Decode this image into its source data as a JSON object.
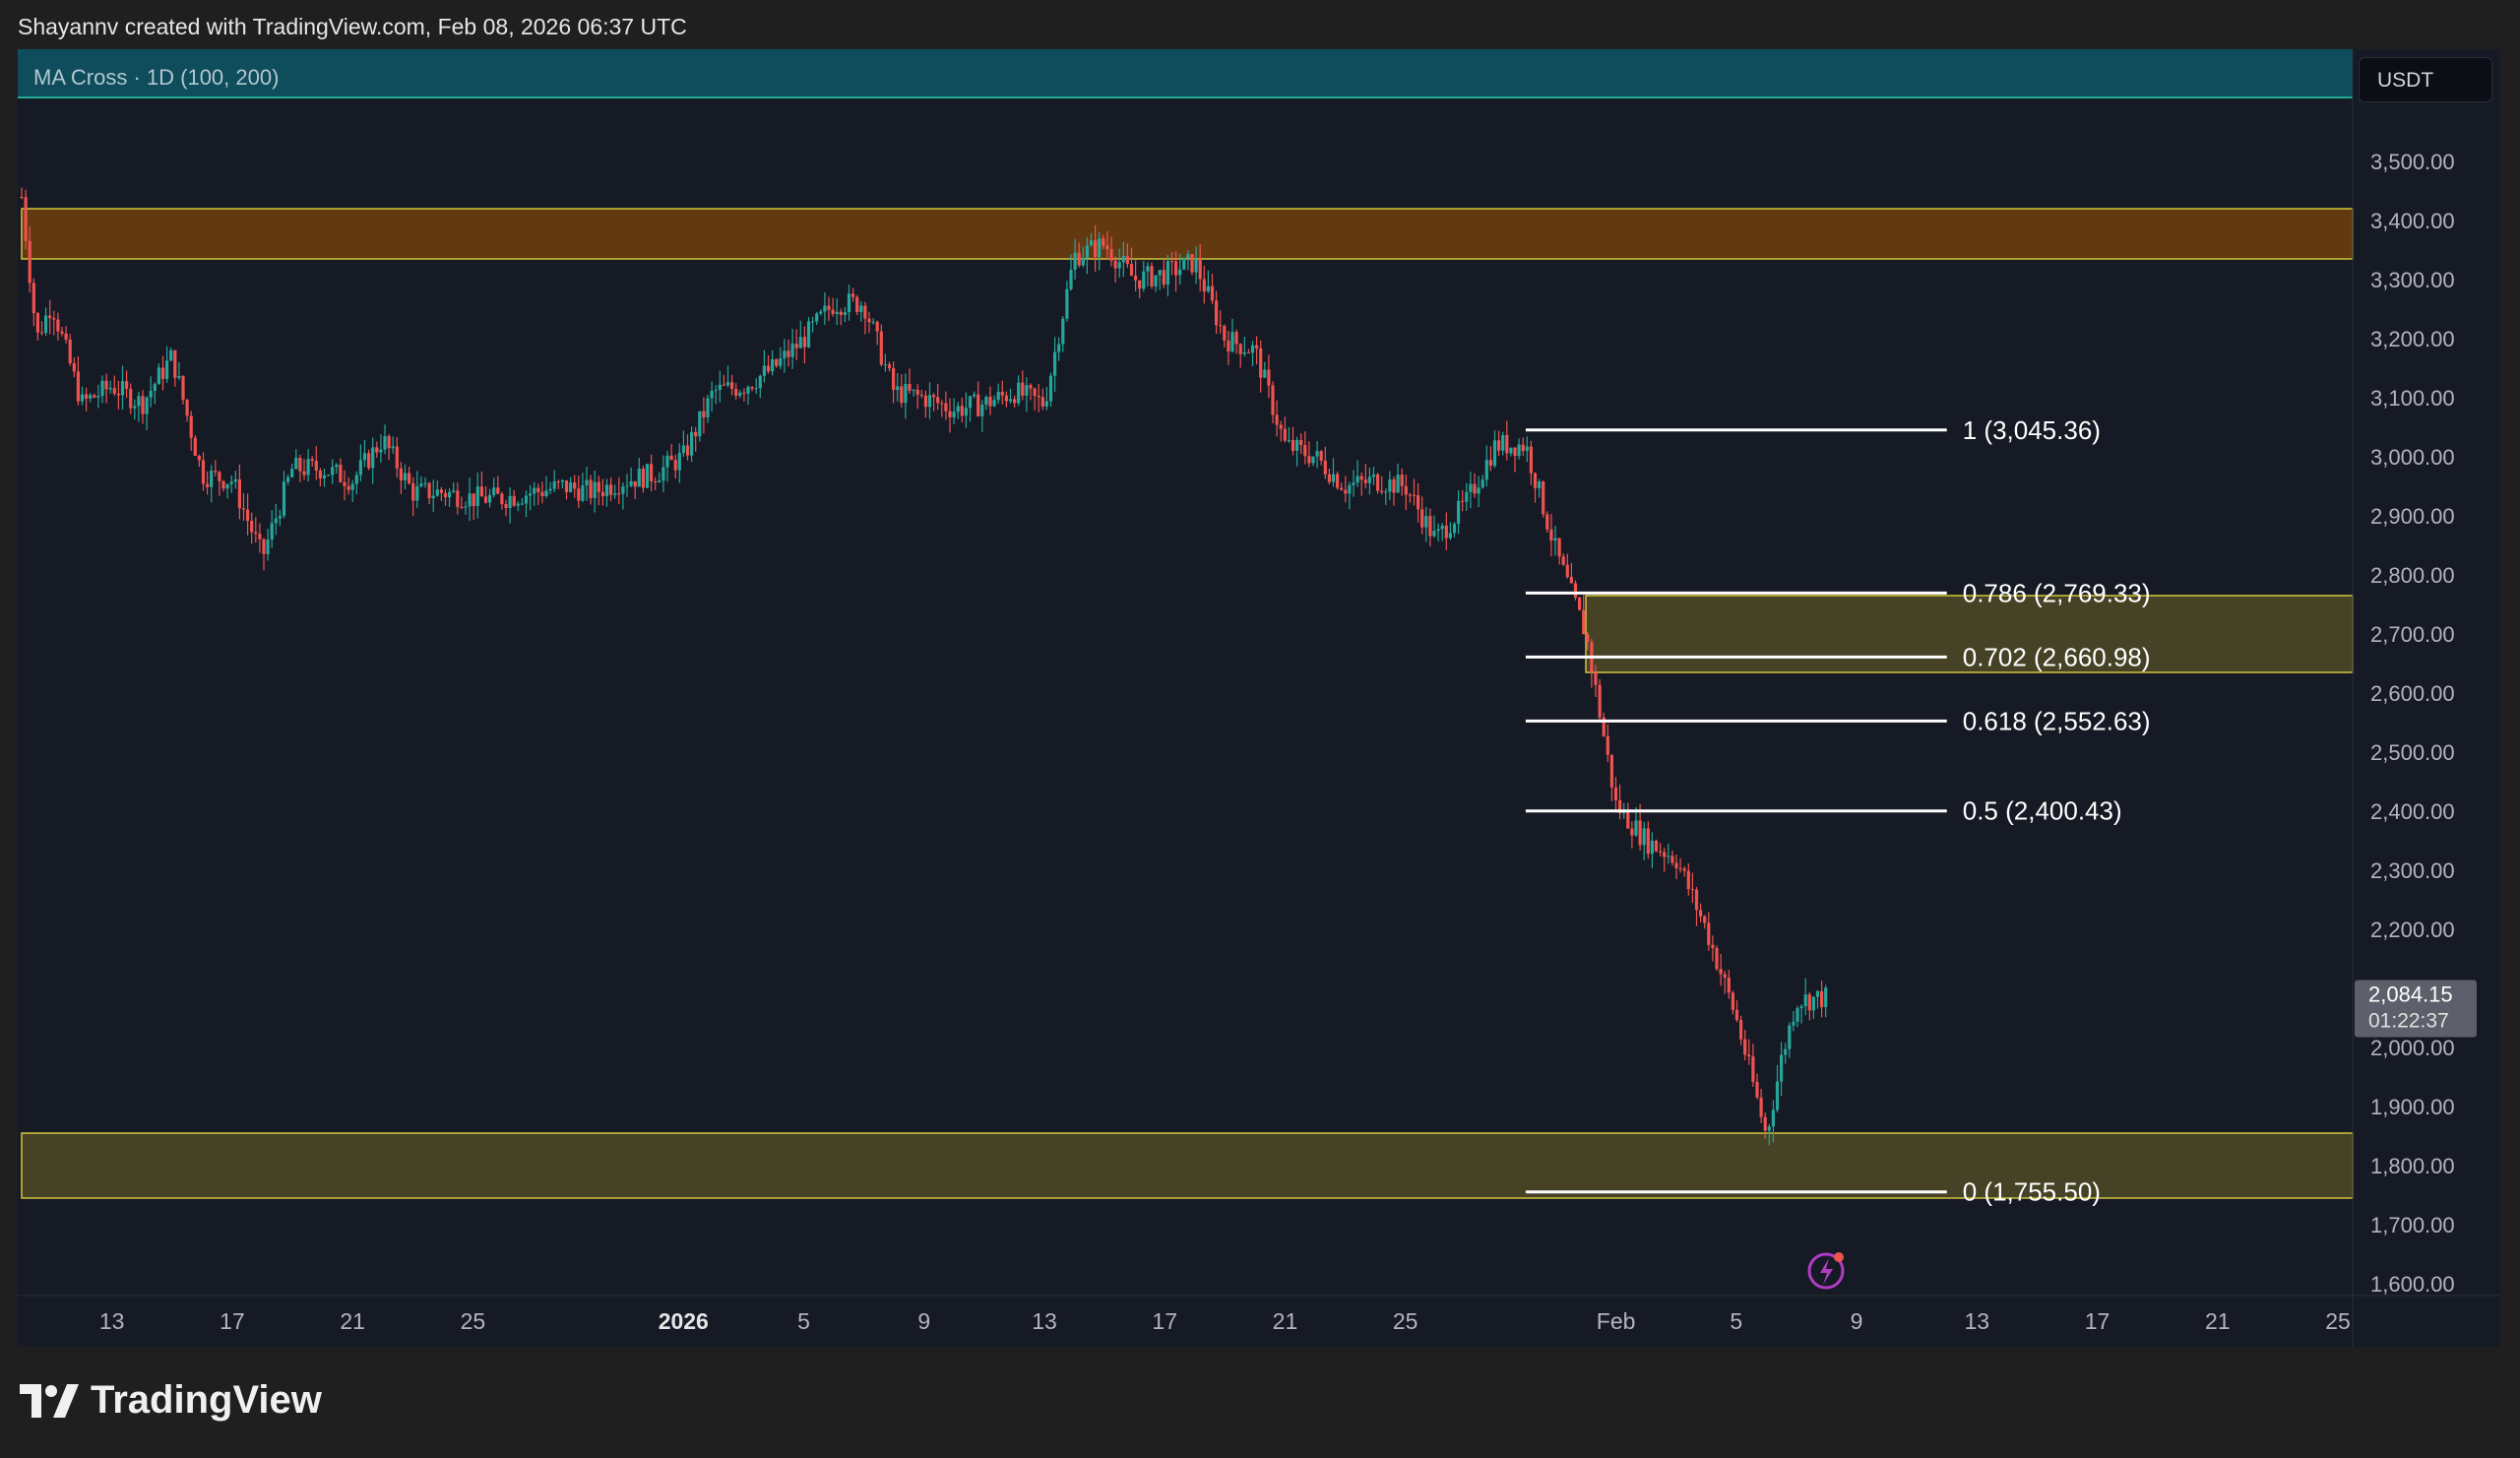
{
  "header": {
    "credit": "Shayannv created with TradingView.com, Feb 08, 2026 06:37 UTC"
  },
  "indicator": {
    "label": "MA Cross · 1D (100, 200)"
  },
  "currency": "USDT",
  "footer": {
    "brand": "TradingView"
  },
  "colors": {
    "background": "#161a25",
    "bull": "#26a69a",
    "bear": "#ef5350",
    "supply_zone": "#6b3d10",
    "demand_zone": "#4e4a26",
    "zone_border": "#d4c43c",
    "fib_line": "#ffffff"
  },
  "chart_data": {
    "type": "candlestick",
    "y_axis": {
      "ylim": [
        1580,
        3610
      ],
      "ticks": [
        "3,500.00",
        "3,400.00",
        "3,300.00",
        "3,200.00",
        "3,100.00",
        "3,000.00",
        "2,900.00",
        "2,800.00",
        "2,700.00",
        "2,600.00",
        "2,500.00",
        "2,400.00",
        "2,300.00",
        "2,200.00",
        "2,100.00",
        "2,000.00",
        "1,900.00",
        "1,800.00",
        "1,700.00",
        "1,600.00"
      ],
      "tick_values": [
        3500,
        3400,
        3300,
        3200,
        3100,
        3000,
        2900,
        2800,
        2700,
        2600,
        2500,
        2400,
        2300,
        2200,
        2100,
        2000,
        1900,
        1800,
        1700,
        1600
      ]
    },
    "x_axis": {
      "start_date": "2025-12-10",
      "end_date": "2026-02-25",
      "tick_labels": [
        {
          "date": "2025-12-13",
          "label": "13",
          "bold": false
        },
        {
          "date": "2025-12-17",
          "label": "17",
          "bold": false
        },
        {
          "date": "2025-12-21",
          "label": "21",
          "bold": false
        },
        {
          "date": "2025-12-25",
          "label": "25",
          "bold": false
        },
        {
          "date": "2026-01-01",
          "label": "2026",
          "bold": true
        },
        {
          "date": "2026-01-05",
          "label": "5",
          "bold": false
        },
        {
          "date": "2026-01-09",
          "label": "9",
          "bold": false
        },
        {
          "date": "2026-01-13",
          "label": "13",
          "bold": false
        },
        {
          "date": "2026-01-17",
          "label": "17",
          "bold": false
        },
        {
          "date": "2026-01-21",
          "label": "21",
          "bold": false
        },
        {
          "date": "2026-01-25",
          "label": "25",
          "bold": false
        },
        {
          "date": "2026-02-01",
          "label": "Feb",
          "bold": false
        },
        {
          "date": "2026-02-05",
          "label": "5",
          "bold": false
        },
        {
          "date": "2026-02-09",
          "label": "9",
          "bold": false
        },
        {
          "date": "2026-02-13",
          "label": "13",
          "bold": false
        },
        {
          "date": "2026-02-17",
          "label": "17",
          "bold": false
        },
        {
          "date": "2026-02-21",
          "label": "21",
          "bold": false
        },
        {
          "date": "2026-02-25",
          "label": "25",
          "bold": false
        }
      ]
    },
    "price_path": [
      [
        "2025-12-10",
        3440
      ],
      [
        "2025-12-10T12",
        3200
      ],
      [
        "2025-12-11",
        3260
      ],
      [
        "2025-12-12",
        3090
      ],
      [
        "2025-12-13",
        3120
      ],
      [
        "2025-12-14",
        3090
      ],
      [
        "2025-12-15",
        3170
      ],
      [
        "2025-12-16",
        2970
      ],
      [
        "2025-12-17",
        2960
      ],
      [
        "2025-12-18",
        2830
      ],
      [
        "2025-12-19",
        2980
      ],
      [
        "2025-12-20",
        2980
      ],
      [
        "2025-12-21",
        2960
      ],
      [
        "2025-12-22",
        3030
      ],
      [
        "2025-12-23",
        2940
      ],
      [
        "2025-12-24",
        2940
      ],
      [
        "2025-12-25",
        2930
      ],
      [
        "2025-12-26",
        2930
      ],
      [
        "2025-12-27",
        2940
      ],
      [
        "2025-12-28",
        2950
      ],
      [
        "2025-12-29",
        2940
      ],
      [
        "2025-12-30",
        2960
      ],
      [
        "2025-12-31",
        2970
      ],
      [
        "2026-01-01",
        3000
      ],
      [
        "2026-01-02",
        3110
      ],
      [
        "2026-01-03",
        3120
      ],
      [
        "2026-01-04",
        3150
      ],
      [
        "2026-01-05",
        3200
      ],
      [
        "2026-01-06",
        3260
      ],
      [
        "2026-01-07",
        3260
      ],
      [
        "2026-01-08",
        3110
      ],
      [
        "2026-01-09",
        3100
      ],
      [
        "2026-01-10",
        3080
      ],
      [
        "2026-01-11",
        3090
      ],
      [
        "2026-01-12",
        3110
      ],
      [
        "2026-01-13",
        3090
      ],
      [
        "2026-01-14",
        3340
      ],
      [
        "2026-01-15",
        3360
      ],
      [
        "2026-01-16",
        3300
      ],
      [
        "2026-01-17",
        3310
      ],
      [
        "2026-01-18",
        3330
      ],
      [
        "2026-01-19",
        3200
      ],
      [
        "2026-01-20",
        3180
      ],
      [
        "2026-01-21",
        3020
      ],
      [
        "2026-01-22",
        3000
      ],
      [
        "2026-01-23",
        2950
      ],
      [
        "2026-01-24",
        2960
      ],
      [
        "2026-01-25",
        2950
      ],
      [
        "2026-01-26",
        2860
      ],
      [
        "2026-01-27",
        2920
      ],
      [
        "2026-01-28",
        3020
      ],
      [
        "2026-01-29",
        3020
      ],
      [
        "2026-01-30",
        2840
      ],
      [
        "2026-01-31",
        2700
      ],
      [
        "2026-02-01",
        2410
      ],
      [
        "2026-02-02",
        2350
      ],
      [
        "2026-02-03",
        2320
      ],
      [
        "2026-02-04",
        2200
      ],
      [
        "2026-02-05",
        2050
      ],
      [
        "2026-02-06",
        1850
      ],
      [
        "2026-02-06T12",
        1980
      ],
      [
        "2026-02-07",
        2080
      ],
      [
        "2026-02-08",
        2084.15
      ]
    ],
    "zones": [
      {
        "name": "supply",
        "from": 3335,
        "to": 3420,
        "x_start": "2025-12-10",
        "x_end": "axis"
      },
      {
        "name": "fib-zone",
        "from": 2635,
        "to": 2765,
        "x_start": "2026-01-31",
        "x_end": "axis"
      },
      {
        "name": "demand",
        "from": 1745,
        "to": 1855,
        "x_start": "2025-12-10",
        "x_end": "axis"
      }
    ],
    "fib_levels": [
      {
        "ratio": "1",
        "price": 3045.36,
        "label": "1 (3,045.36)"
      },
      {
        "ratio": "0.786",
        "price": 2769.33,
        "label": "0.786 (2,769.33)"
      },
      {
        "ratio": "0.702",
        "price": 2660.98,
        "label": "0.702 (2,660.98)"
      },
      {
        "ratio": "0.618",
        "price": 2552.63,
        "label": "0.618 (2,552.63)"
      },
      {
        "ratio": "0.5",
        "price": 2400.43,
        "label": "0.5 (2,400.43)"
      },
      {
        "ratio": "0",
        "price": 1755.5,
        "label": "0 (1,755.50)"
      }
    ],
    "fib_x_start": "2026-01-29",
    "fib_x_end": "2026-02-12",
    "last_price": {
      "value": "2,084.15",
      "countdown": "01:22:37",
      "price": 2084.15
    }
  }
}
